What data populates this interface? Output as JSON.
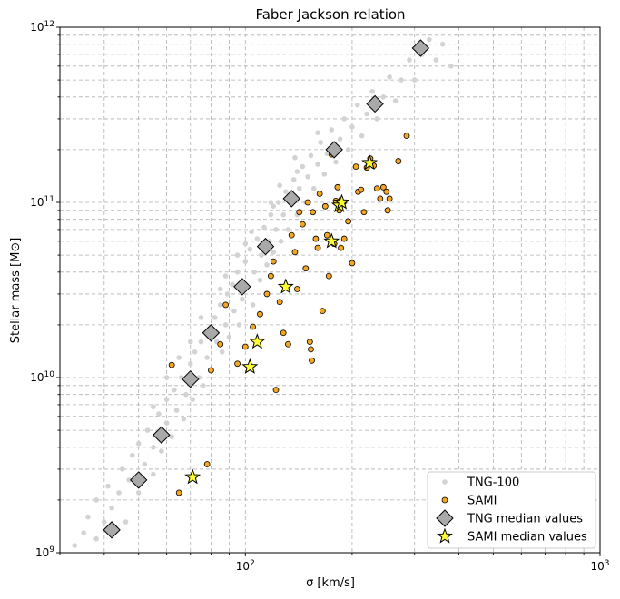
{
  "chart_data": {
    "type": "scatter",
    "title": "Faber Jackson relation",
    "xlabel": "σ [km/s]",
    "ylabel": "Stellar mass [M⊙]",
    "xscale": "log",
    "yscale": "log",
    "xlim": [
      30,
      1000
    ],
    "ylim": [
      1000000000,
      1000000000000
    ],
    "grid": true,
    "legend_position": "lower-right",
    "x_tick_labels": [
      {
        "value": 100,
        "base": "10",
        "exp": "2"
      },
      {
        "value": 1000,
        "base": "10",
        "exp": "3"
      }
    ],
    "y_tick_labels": [
      {
        "value": 1000000000,
        "base": "10",
        "exp": "9"
      },
      {
        "value": 10000000000,
        "base": "10",
        "exp": "10"
      },
      {
        "value": 100000000000,
        "base": "10",
        "exp": "11"
      },
      {
        "value": 1000000000000,
        "base": "10",
        "exp": "12"
      }
    ],
    "series": [
      {
        "name": "TNG-100",
        "marker": "circle",
        "color": "#d3d3d3",
        "description_points": "cloud",
        "points": [
          [
            33,
            1100000000.0
          ],
          [
            35,
            1300000000.0
          ],
          [
            36,
            1600000000.0
          ],
          [
            38,
            1200000000.0
          ],
          [
            38,
            2000000000.0
          ],
          [
            40,
            1500000000.0
          ],
          [
            41,
            2400000000.0
          ],
          [
            42,
            1800000000.0
          ],
          [
            44,
            2200000000.0
          ],
          [
            45,
            3000000000.0
          ],
          [
            46,
            1500000000.0
          ],
          [
            47,
            2600000000.0
          ],
          [
            48,
            3600000000.0
          ],
          [
            50,
            2200000000.0
          ],
          [
            50,
            4200000000.0
          ],
          [
            52,
            3200000000.0
          ],
          [
            53,
            5000000000.0
          ],
          [
            55,
            2800000000.0
          ],
          [
            55,
            4000000000.0
          ],
          [
            57,
            6200000000.0
          ],
          [
            58,
            3800000000.0
          ],
          [
            60,
            5500000000.0
          ],
          [
            60,
            7500000000.0
          ],
          [
            62,
            4600000000.0
          ],
          [
            63,
            8500000000.0
          ],
          [
            64,
            6500000000.0
          ],
          [
            66,
            10000000000.0
          ],
          [
            67,
            5800000000.0
          ],
          [
            68,
            8000000000.0
          ],
          [
            70,
            12000000000.0
          ],
          [
            71,
            7500000000.0
          ],
          [
            72,
            14000000000.0
          ],
          [
            74,
            10000000000.0
          ],
          [
            75,
            16000000000.0
          ],
          [
            76,
            9000000000.0
          ],
          [
            78,
            13000000000.0
          ],
          [
            79,
            19000000000.0
          ],
          [
            80,
            11000000000.0
          ],
          [
            82,
            22000000000.0
          ],
          [
            83,
            16000000000.0
          ],
          [
            85,
            26000000000.0
          ],
          [
            86,
            14000000000.0
          ],
          [
            88,
            20000000000.0
          ],
          [
            89,
            30000000000.0
          ],
          [
            90,
            17000000000.0
          ],
          [
            92,
            34000000000.0
          ],
          [
            93,
            24000000000.0
          ],
          [
            95,
            40000000000.0
          ],
          [
            96,
            20000000000.0
          ],
          [
            98,
            28000000000.0
          ],
          [
            100,
            46000000000.0
          ],
          [
            101,
            33000000000.0
          ],
          [
            103,
            54000000000.0
          ],
          [
            105,
            26000000000.0
          ],
          [
            106,
            40000000000.0
          ],
          [
            108,
            62000000000.0
          ],
          [
            110,
            36000000000.0
          ],
          [
            111,
            50000000000.0
          ],
          [
            113,
            72000000000.0
          ],
          [
            115,
            44000000000.0
          ],
          [
            117,
            60000000000.0
          ],
          [
            118,
            85000000000.0
          ],
          [
            120,
            52000000000.0
          ],
          [
            122,
            70000000000.0
          ],
          [
            124,
            100000000000.0
          ],
          [
            126,
            60000000000.0
          ],
          [
            128,
            85000000000.0
          ],
          [
            130,
            115000000000.0
          ],
          [
            132,
            70000000000.0
          ],
          [
            135,
            100000000000.0
          ],
          [
            137,
            135000000000.0
          ],
          [
            140,
            85000000000.0
          ],
          [
            142,
            120000000000.0
          ],
          [
            145,
            160000000000.0
          ],
          [
            148,
            100000000000.0
          ],
          [
            150,
            140000000000.0
          ],
          [
            153,
            185000000000.0
          ],
          [
            156,
            120000000000.0
          ],
          [
            160,
            165000000000.0
          ],
          [
            163,
            220000000000.0
          ],
          [
            167,
            145000000000.0
          ],
          [
            170,
            190000000000.0
          ],
          [
            175,
            260000000000.0
          ],
          [
            180,
            170000000000.0
          ],
          [
            185,
            230000000000.0
          ],
          [
            190,
            300000000000.0
          ],
          [
            195,
            200000000000.0
          ],
          [
            200,
            270000000000.0
          ],
          [
            207,
            360000000000.0
          ],
          [
            213,
            240000000000.0
          ],
          [
            220,
            320000000000.0
          ],
          [
            228,
            430000000000.0
          ],
          [
            235,
            300000000000.0
          ],
          [
            245,
            400000000000.0
          ],
          [
            255,
            520000000000.0
          ],
          [
            265,
            380000000000.0
          ],
          [
            275,
            500000000000.0
          ],
          [
            290,
            650000000000.0
          ],
          [
            300,
            500000000000.0
          ],
          [
            315,
            700000000000.0
          ],
          [
            330,
            850000000000.0
          ],
          [
            345,
            650000000000.0
          ],
          [
            360,
            800000000000.0
          ],
          [
            380,
            600000000000.0
          ],
          [
            60,
            10000000000.0
          ],
          [
            75,
            22000000000.0
          ],
          [
            88,
            38000000000.0
          ],
          [
            104,
            68000000000.0
          ],
          [
            120,
            95000000000.0
          ],
          [
            140,
            150000000000.0
          ],
          [
            160,
            250000000000.0
          ],
          [
            55,
            6800000000.0
          ],
          [
            70,
            16000000000.0
          ],
          [
            85,
            32000000000.0
          ],
          [
            100,
            58000000000.0
          ],
          [
            118,
            100000000000.0
          ],
          [
            138,
            180000000000.0
          ],
          [
            65,
            13000000000.0
          ],
          [
            95,
            50000000000.0
          ],
          [
            125,
            125000000000.0
          ]
        ]
      },
      {
        "name": "SAMI",
        "marker": "circle",
        "color": "#f5a623",
        "edge": "#000000",
        "points": [
          [
            62,
            11800000000.0
          ],
          [
            65,
            2200000000.0
          ],
          [
            78,
            3200000000.0
          ],
          [
            80,
            11000000000.0
          ],
          [
            85,
            15500000000.0
          ],
          [
            88,
            26000000000.0
          ],
          [
            95,
            12000000000.0
          ],
          [
            100,
            15000000000.0
          ],
          [
            105,
            19500000000.0
          ],
          [
            110,
            23000000000.0
          ],
          [
            115,
            30000000000.0
          ],
          [
            118,
            38000000000.0
          ],
          [
            120,
            46000000000.0
          ],
          [
            122,
            8500000000.0
          ],
          [
            125,
            27000000000.0
          ],
          [
            128,
            18000000000.0
          ],
          [
            132,
            15500000000.0
          ],
          [
            135,
            65000000000.0
          ],
          [
            138,
            52000000000.0
          ],
          [
            140,
            32000000000.0
          ],
          [
            142,
            88000000000.0
          ],
          [
            145,
            75000000000.0
          ],
          [
            148,
            42000000000.0
          ],
          [
            150,
            100000000000.0
          ],
          [
            152,
            16000000000.0
          ],
          [
            153,
            14500000000.0
          ],
          [
            154,
            12500000000.0
          ],
          [
            155,
            88000000000.0
          ],
          [
            158,
            62000000000.0
          ],
          [
            160,
            55000000000.0
          ],
          [
            162,
            112000000000.0
          ],
          [
            165,
            24000000000.0
          ],
          [
            168,
            95000000000.0
          ],
          [
            170,
            65000000000.0
          ],
          [
            172,
            38000000000.0
          ],
          [
            175,
            188000000000.0
          ],
          [
            178,
            58000000000.0
          ],
          [
            180,
            102000000000.0
          ],
          [
            182,
            122000000000.0
          ],
          [
            184,
            90000000000.0
          ],
          [
            186,
            55000000000.0
          ],
          [
            188,
            100000000000.0
          ],
          [
            190,
            62000000000.0
          ],
          [
            195,
            78000000000.0
          ],
          [
            200,
            45000000000.0
          ],
          [
            205,
            160000000000.0
          ],
          [
            208,
            115000000000.0
          ],
          [
            212,
            118000000000.0
          ],
          [
            216,
            88000000000.0
          ],
          [
            220,
            158000000000.0
          ],
          [
            225,
            178000000000.0
          ],
          [
            230,
            162000000000.0
          ],
          [
            235,
            120000000000.0
          ],
          [
            240,
            105000000000.0
          ],
          [
            245,
            122000000000.0
          ],
          [
            250,
            115000000000.0
          ],
          [
            252,
            90000000000.0
          ],
          [
            255,
            105000000000.0
          ],
          [
            270,
            172000000000.0
          ],
          [
            285,
            240000000000.0
          ]
        ]
      },
      {
        "name": "TNG median values",
        "marker": "diamond",
        "color": "#a9a9a9",
        "edge": "#000000",
        "points": [
          [
            42,
            1350000000.0
          ],
          [
            50,
            2600000000.0
          ],
          [
            58,
            4700000000.0
          ],
          [
            70,
            9800000000.0
          ],
          [
            80,
            18000000000.0
          ],
          [
            98,
            33000000000.0
          ],
          [
            114,
            56000000000.0
          ],
          [
            135,
            105000000000.0
          ],
          [
            178,
            200000000000.0
          ],
          [
            232,
            365000000000.0
          ],
          [
            312,
            760000000000.0
          ]
        ]
      },
      {
        "name": "SAMI median values",
        "marker": "star",
        "color": "#ffff33",
        "edge": "#000000",
        "points": [
          [
            71,
            2700000000.0
          ],
          [
            103,
            11500000000.0
          ],
          [
            108,
            16000000000.0
          ],
          [
            130,
            33000000000.0
          ],
          [
            175,
            60000000000.0
          ],
          [
            184,
            96000000000.0
          ],
          [
            187,
            100000000000.0
          ],
          [
            224,
            168000000000.0
          ]
        ]
      }
    ]
  }
}
